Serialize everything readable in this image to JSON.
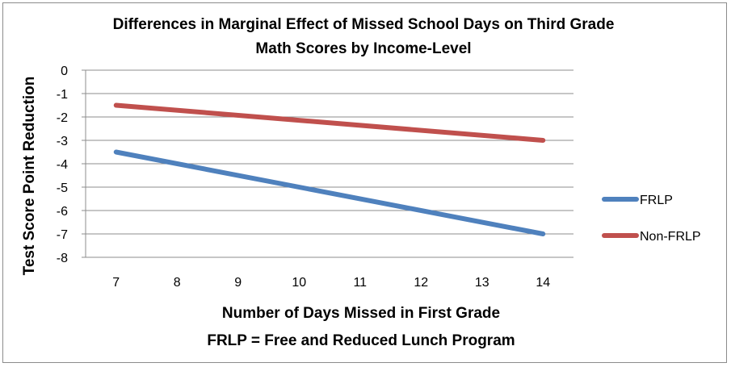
{
  "chart_data": {
    "type": "line",
    "title_lines": [
      "Differences in Marginal Effect of Missed School Days on Third Grade",
      "Math Scores by Income-Level"
    ],
    "xlabel": "Number of Days Missed in First Grade",
    "xlabel_note": "FRLP = Free and Reduced Lunch Program",
    "ylabel": "Test Score Point Reduction",
    "categories": [
      "7",
      "8",
      "9",
      "10",
      "11",
      "12",
      "13",
      "14"
    ],
    "x": [
      7,
      14
    ],
    "ylim": [
      -8,
      0
    ],
    "yticks": [
      "0",
      "-1",
      "-2",
      "-3",
      "-4",
      "-5",
      "-6",
      "-7",
      "-8"
    ],
    "grid": true,
    "legend_position": "right",
    "series": [
      {
        "name": "FRLP",
        "color": "#4f81bd",
        "x": [
          7,
          14
        ],
        "values": [
          -3.5,
          -7.0
        ]
      },
      {
        "name": "Non-FRLP",
        "color": "#c0504d",
        "x": [
          7,
          14
        ],
        "values": [
          -1.5,
          -3.0
        ]
      }
    ]
  }
}
